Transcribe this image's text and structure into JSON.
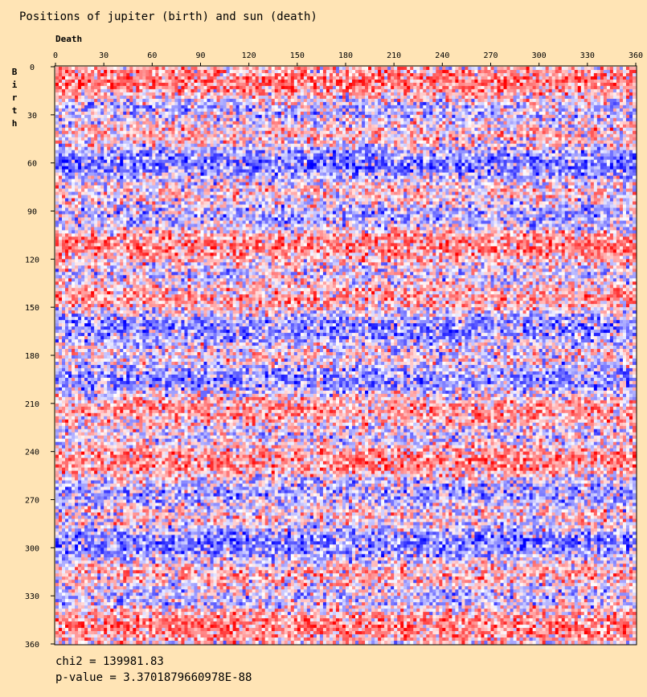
{
  "chart_data": {
    "type": "heatmap",
    "title": "Positions of jupiter (birth) and sun (death)",
    "xlabel": "Death",
    "ylabel": "Birth",
    "xlim": [
      0,
      360
    ],
    "ylim": [
      0,
      360
    ],
    "x_ticks": [
      "0",
      "30",
      "60",
      "90",
      "120",
      "150",
      "180",
      "210",
      "240",
      "270",
      "300",
      "330",
      "360"
    ],
    "y_ticks": [
      "0",
      "30",
      "60",
      "90",
      "120",
      "150",
      "180",
      "210",
      "240",
      "270",
      "300",
      "330",
      "360"
    ],
    "bin_size_degrees": 2,
    "color_scale": {
      "low": "#0000FF",
      "mid": "#FFFFFF",
      "high": "#FF0000"
    },
    "grid": false,
    "stats": {
      "chi2": "chi2 = 139981.83",
      "p_value": "p-value = 3.3701879660978E-88"
    }
  }
}
